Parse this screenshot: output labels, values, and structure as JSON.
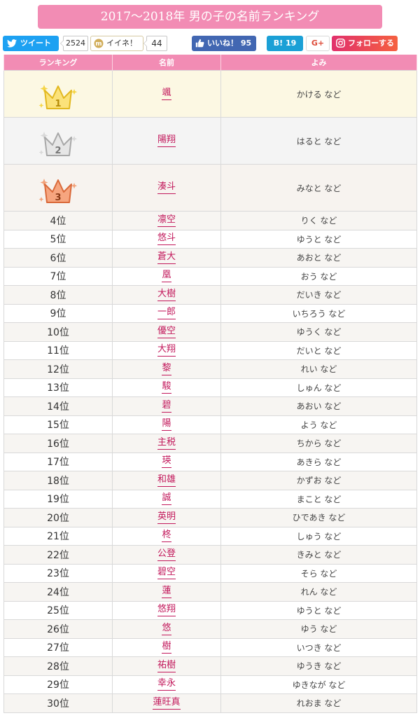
{
  "title": "2017〜2018年 男の子の名前ランキング",
  "social": {
    "tweet_label": "ツイート",
    "tweet_count": "2524",
    "mixi_label": "イイネ！",
    "mixi_count": "44",
    "fb_label": "いいね！ 95",
    "hatena_label": "B! 19",
    "gplus_label": "G+",
    "insta_label": "フォローする"
  },
  "headers": {
    "rank": "ランキング",
    "name": "名前",
    "yomi": "よみ"
  },
  "top": [
    {
      "rank": "1",
      "name": "颯",
      "yomi": "かける など"
    },
    {
      "rank": "2",
      "name": "陽翔",
      "yomi": "はると など"
    },
    {
      "rank": "3",
      "name": "湊斗",
      "yomi": "みなと など"
    }
  ],
  "rows": [
    {
      "rank": "4位",
      "name": "凛空",
      "yomi": "りく など"
    },
    {
      "rank": "5位",
      "name": "悠斗",
      "yomi": "ゆうと など"
    },
    {
      "rank": "6位",
      "name": "蒼大",
      "yomi": "あおと など"
    },
    {
      "rank": "7位",
      "name": "凰",
      "yomi": "おう など"
    },
    {
      "rank": "8位",
      "name": "大樹",
      "yomi": "だいき など"
    },
    {
      "rank": "9位",
      "name": "一郎",
      "yomi": "いちろう など"
    },
    {
      "rank": "10位",
      "name": "優空",
      "yomi": "ゆうく など"
    },
    {
      "rank": "11位",
      "name": "大翔",
      "yomi": "だいと など"
    },
    {
      "rank": "12位",
      "name": "黎",
      "yomi": "れい など"
    },
    {
      "rank": "13位",
      "name": "駿",
      "yomi": "しゅん など"
    },
    {
      "rank": "14位",
      "name": "碧",
      "yomi": "あおい など"
    },
    {
      "rank": "15位",
      "name": "陽",
      "yomi": "よう など"
    },
    {
      "rank": "16位",
      "name": "主税",
      "yomi": "ちから など"
    },
    {
      "rank": "17位",
      "name": "瑛",
      "yomi": "あきら など"
    },
    {
      "rank": "18位",
      "name": "和雄",
      "yomi": "かずお など"
    },
    {
      "rank": "19位",
      "name": "誠",
      "yomi": "まこと など"
    },
    {
      "rank": "20位",
      "name": "英明",
      "yomi": "ひであき など"
    },
    {
      "rank": "21位",
      "name": "柊",
      "yomi": "しゅう など"
    },
    {
      "rank": "22位",
      "name": "公登",
      "yomi": "きみと など"
    },
    {
      "rank": "23位",
      "name": "碧空",
      "yomi": "そら など"
    },
    {
      "rank": "24位",
      "name": "蓮",
      "yomi": "れん など"
    },
    {
      "rank": "25位",
      "name": "悠翔",
      "yomi": "ゆうと など"
    },
    {
      "rank": "26位",
      "name": "悠",
      "yomi": "ゆう など"
    },
    {
      "rank": "27位",
      "name": "樹",
      "yomi": "いつき など"
    },
    {
      "rank": "28位",
      "name": "祐樹",
      "yomi": "ゆうき など"
    },
    {
      "rank": "29位",
      "name": "幸永",
      "yomi": "ゆきなが など"
    },
    {
      "rank": "30位",
      "name": "蓮旺真",
      "yomi": "れおま など"
    }
  ],
  "colors": {
    "brand_pink": "#f28cb4",
    "link": "#c2185b",
    "twitter": "#1da1f2",
    "facebook": "#4267b2",
    "hatena": "#1ba0d6",
    "gold": "#f3c743",
    "silver": "#c8c8c8",
    "bronze": "#f08a5d"
  },
  "icons": [
    "twitter-bird-icon",
    "mixi-icon",
    "facebook-thumb-icon",
    "hatena-bookmark-icon",
    "google-plus-icon",
    "instagram-icon",
    "gold-crown-icon",
    "silver-crown-icon",
    "bronze-crown-icon"
  ]
}
